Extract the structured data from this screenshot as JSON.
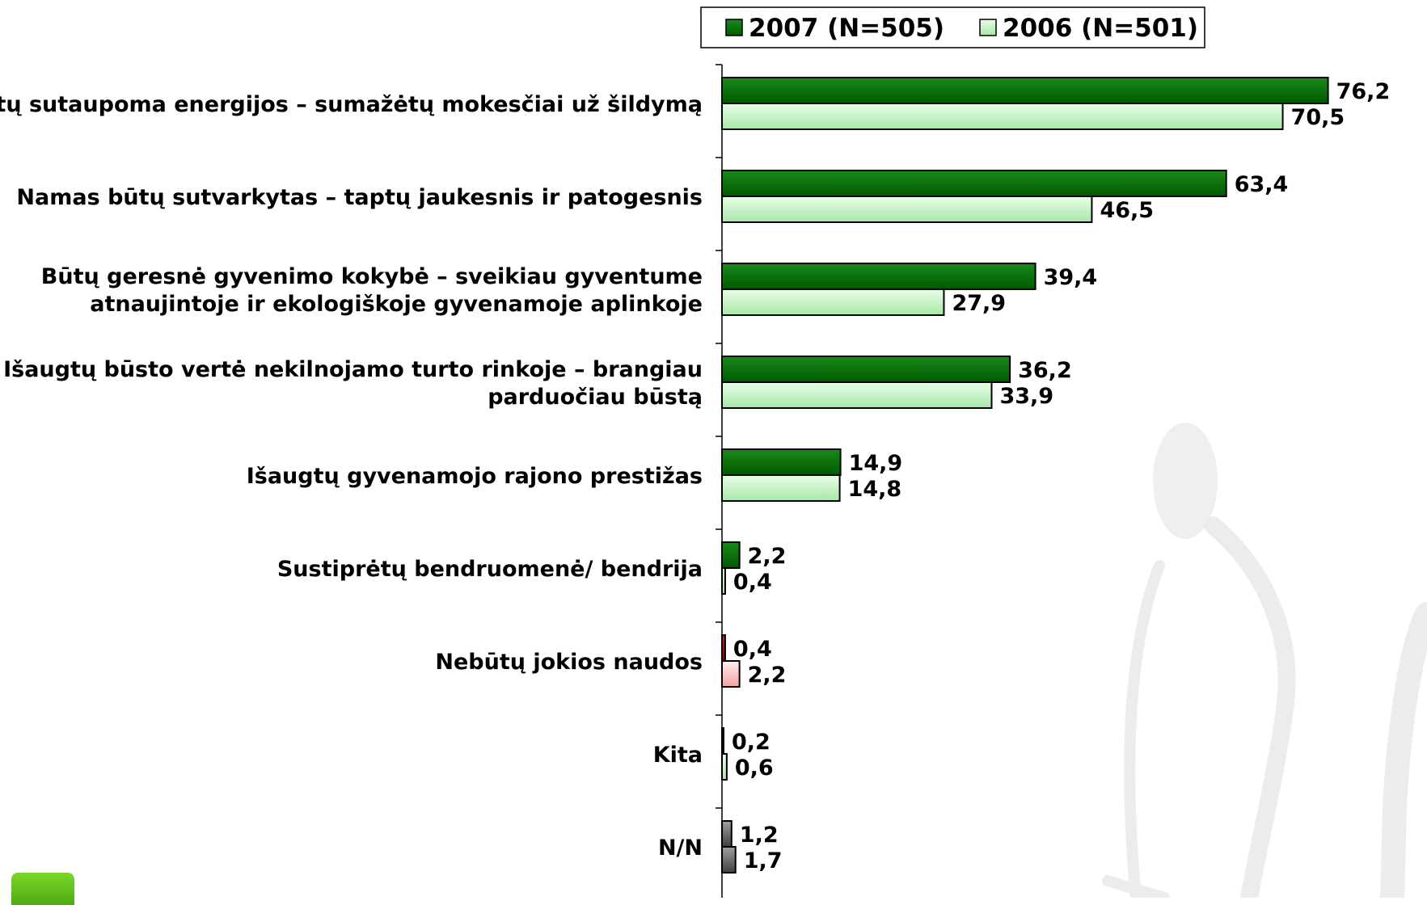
{
  "chart_data": {
    "type": "bar",
    "orientation": "horizontal",
    "title": "",
    "xlabel": "",
    "ylabel": "",
    "xlim": [
      0,
      80
    ],
    "grid": false,
    "legend_position": "top",
    "categories": [
      [
        "Būtų sutaupoma energijos – sumažėtų mokesčiai už šildymą"
      ],
      [
        "Namas būtų sutvarkytas – taptų jaukesnis ir patogesnis"
      ],
      [
        "Būtų geresnė gyvenimo kokybė – sveikiau gyventume",
        "atnaujintoje ir ekologiškoje gyvenamoje aplinkoje"
      ],
      [
        "Išaugtų būsto vertė nekilnojamo turto rinkoje – brangiau",
        "parduočiau būstą"
      ],
      [
        "Išaugtų gyvenamojo rajono prestižas"
      ],
      [
        "Sustiprėtų bendruomenė/ bendrija"
      ],
      [
        "Nebūtų jokios naudos"
      ],
      [
        "Kita"
      ],
      [
        "N/N"
      ]
    ],
    "series": [
      {
        "name": "2007 (N=505)",
        "color": "#0a6e0a",
        "values": [
          76.2,
          63.4,
          39.4,
          36.2,
          14.9,
          2.2,
          0.4,
          0.2,
          1.2
        ],
        "labels": [
          "76,2",
          "63,4",
          "39,4",
          "36,2",
          "14,9",
          "2,2",
          "0,4",
          "0,2",
          "1,2"
        ]
      },
      {
        "name": "2006 (N=501)",
        "color": "#c8f5c8",
        "values": [
          70.5,
          46.5,
          27.9,
          33.9,
          14.8,
          0.4,
          2.2,
          0.6,
          1.7
        ],
        "labels": [
          "70,5",
          "46,5",
          "27,9",
          "33,9",
          "14,8",
          "0,4",
          "2,2",
          "0,6",
          "1,7"
        ]
      }
    ],
    "category_colors": {
      "6": [
        "#b31010",
        "#ffd0d0"
      ],
      "7": [
        "#101010",
        "#e0e0e0"
      ],
      "8": [
        "#404040",
        "#808080"
      ]
    }
  }
}
